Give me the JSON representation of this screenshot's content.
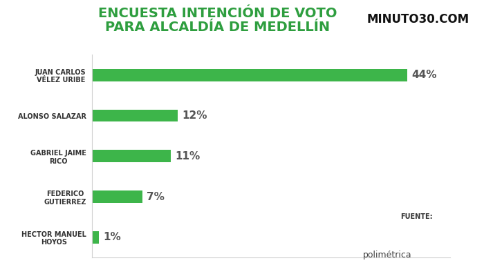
{
  "chart_data": {
    "type": "bar",
    "orientation": "horizontal",
    "title": "ENCUESTA INTENCIÓN DE VOTO PARA ALCALDÍA DE MEDELLÍN",
    "categories": [
      "JUAN CARLOS VÉLEZ URIBE",
      "ALONSO SALAZAR",
      "GABRIEL JAIME RICO",
      "FEDERICO GUTIERREZ",
      "HECTOR MANUEL HOYOS"
    ],
    "values": [
      44,
      12,
      11,
      7,
      1
    ],
    "value_labels": [
      "44%",
      "12%",
      "11%",
      "7%",
      "1%"
    ],
    "data_labels": true,
    "color": "#3db54a",
    "xlim": [
      0,
      50
    ],
    "xticks": [],
    "tick_labels": "y",
    "grid": false,
    "annotations": [
      "MINUTO30.COM",
      "FUENTE:",
      "polimétrica"
    ]
  }
}
